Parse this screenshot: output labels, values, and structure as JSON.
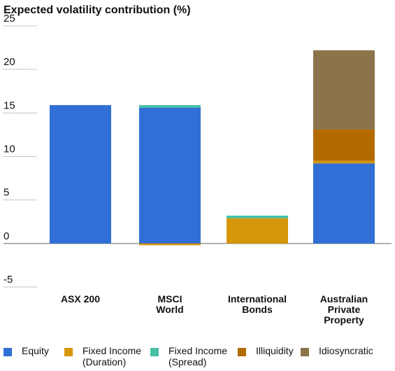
{
  "chart_data": {
    "type": "bar",
    "stacked": true,
    "title": "Expected volatility contribution (%)",
    "xlabel": "",
    "ylabel": "",
    "ylim": [
      -5,
      25
    ],
    "yticks": [
      25,
      20,
      15,
      10,
      5,
      0,
      -5
    ],
    "categories": [
      "ASX 200",
      "MSCI\nWorld",
      "International\nBonds",
      "Australian\nPrivate\nProperty"
    ],
    "series": [
      {
        "name": "Equity",
        "color": "#2f6fd6",
        "values": [
          15.9,
          15.6,
          0,
          9.2
        ]
      },
      {
        "name": "Fixed Income\n(Duration)",
        "color": "#d6960a",
        "values": [
          0,
          -0.2,
          2.9,
          0.3
        ]
      },
      {
        "name": "Fixed Income\n(Spread)",
        "color": "#45bfa6",
        "values": [
          0,
          0.3,
          0.3,
          0
        ]
      },
      {
        "name": "Illiquidity",
        "color": "#b36b00",
        "values": [
          0,
          0,
          0,
          3.6
        ]
      },
      {
        "name": "Idiosyncratic",
        "color": "#8c734a",
        "values": [
          0,
          0,
          0,
          9.1
        ]
      }
    ],
    "grid": "dotted horizontal lines at y ticks, left side only",
    "legend_position": "bottom"
  }
}
